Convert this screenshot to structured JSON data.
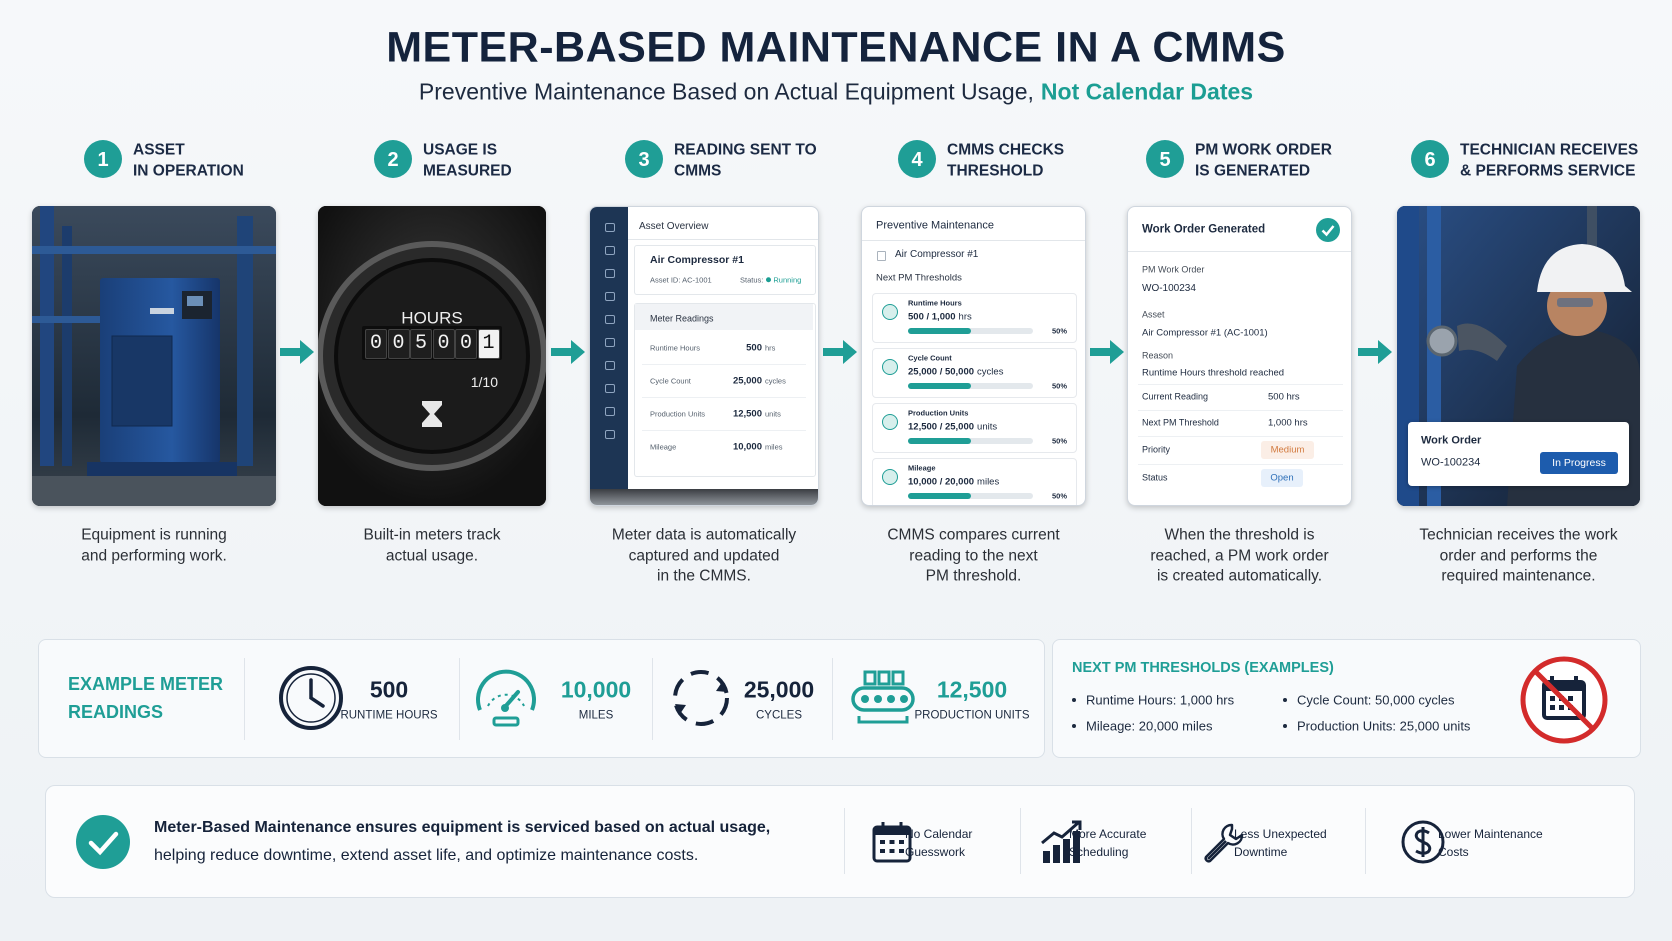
{
  "header": {
    "title": "METER-BASED MAINTENANCE IN A CMMS",
    "subtitle": "Preventive Maintenance Based on Actual Equipment Usage,",
    "subtitle_highlight": "Not Calendar Dates"
  },
  "steps": [
    {
      "number": "1",
      "title": [
        "ASSET",
        "IN OPERATION"
      ],
      "caption": [
        "Equipment is running",
        "and performing work."
      ]
    },
    {
      "number": "2",
      "title": [
        "USAGE IS",
        "MEASURED"
      ],
      "caption": [
        "Built-in meters track",
        "actual usage."
      ]
    },
    {
      "number": "3",
      "title": [
        "READING SENT TO",
        "CMMS"
      ],
      "caption": [
        "Meter data is automatically",
        "captured and updated",
        "in the CMMS."
      ]
    },
    {
      "number": "4",
      "title": [
        "CMMS CHECKS",
        "THRESHOLD"
      ],
      "caption": [
        "CMMS compares current",
        "reading to the next",
        "PM threshold."
      ]
    },
    {
      "number": "5",
      "title": [
        "PM WORK ORDER",
        "IS GENERATED"
      ],
      "caption": [
        "When the threshold is",
        "reached, a PM work order",
        "is created automatically."
      ]
    },
    {
      "number": "6",
      "title": [
        "TECHNICIAN RECEIVES",
        "& PERFORMS SERVICE"
      ],
      "caption": [
        "Technician receives the work",
        "order and performs the",
        "required maintenance."
      ]
    }
  ],
  "meter_display": {
    "label": "HOURS",
    "digits": [
      "0",
      "0",
      "5",
      "0",
      "0",
      "1"
    ],
    "ratio": "1/10"
  },
  "asset_overview": {
    "header": "Asset Overview",
    "asset": "Air Compressor #1",
    "asset_id": "Asset ID: AC-1001",
    "status_label": "Status:",
    "status": "Running",
    "section": "Meter Readings",
    "rows": [
      [
        "Runtime Hours",
        "500",
        "hrs"
      ],
      [
        "Cycle Count",
        "25,000",
        "cycles"
      ],
      [
        "Production Units",
        "12,500",
        "units"
      ],
      [
        "Mileage",
        "10,000",
        "miles"
      ]
    ]
  },
  "pm_check": {
    "header": "Preventive Maintenance",
    "asset": "Air Compressor #1",
    "subheader": "Next PM Thresholds",
    "items": [
      {
        "name": "Runtime Hours",
        "reading": "500 / 1,000",
        "unit": "hrs",
        "progress": {
          "value": 50,
          "label": "50%"
        }
      },
      {
        "name": "Cycle Count",
        "reading": "25,000 / 50,000",
        "unit": "cycles",
        "progress": {
          "value": 50,
          "label": "50%"
        }
      },
      {
        "name": "Production Units",
        "reading": "12,500 / 25,000",
        "unit": "units",
        "progress": {
          "value": 50,
          "label": "50%"
        }
      },
      {
        "name": "Mileage",
        "reading": "10,000 / 20,000",
        "unit": "miles",
        "progress": {
          "value": 50,
          "label": "50%"
        }
      }
    ]
  },
  "work_order": {
    "header": "Work Order Generated",
    "type": "PM Work Order",
    "number": "WO-100234",
    "asset_label": "Asset",
    "asset": "Air Compressor #1 (AC-1001)",
    "reason_label": "Reason",
    "reason": "Runtime Hours threshold reached",
    "fields": [
      [
        "Current Reading",
        "500 hrs"
      ],
      [
        "Next PM Threshold",
        "1,000 hrs"
      ]
    ],
    "priority_label": "Priority",
    "priority": "Medium",
    "status_label": "Status",
    "status": "Open"
  },
  "technician_card": {
    "label": "Work Order",
    "number": "WO-100234",
    "status": "In Progress"
  },
  "example_readings": {
    "title": [
      "EXAMPLE METER",
      "READINGS"
    ],
    "items": [
      {
        "value": "500",
        "unit": "RUNTIME HOURS"
      },
      {
        "value": "10,000",
        "unit": "MILES"
      },
      {
        "value": "25,000",
        "unit": "CYCLES"
      },
      {
        "value": "12,500",
        "unit": "PRODUCTION UNITS"
      }
    ]
  },
  "thresholds": {
    "title": "NEXT PM THRESHOLDS (EXAMPLES)",
    "items": [
      "Runtime Hours: 1,000 hrs",
      "Cycle Count: 50,000 cycles",
      "Mileage: 20,000 miles",
      "Production Units: 25,000 units"
    ]
  },
  "summary": {
    "bold": "Meter-Based Maintenance ensures equipment is serviced based on actual usage,",
    "text": "helping reduce downtime, extend asset life, and optimize maintenance costs.",
    "benefits": [
      [
        "No Calendar",
        "Guesswork"
      ],
      [
        "More Accurate",
        "Scheduling"
      ],
      [
        "Less Unexpected",
        "Downtime"
      ],
      [
        "Lower Maintenance",
        "Costs"
      ]
    ]
  }
}
